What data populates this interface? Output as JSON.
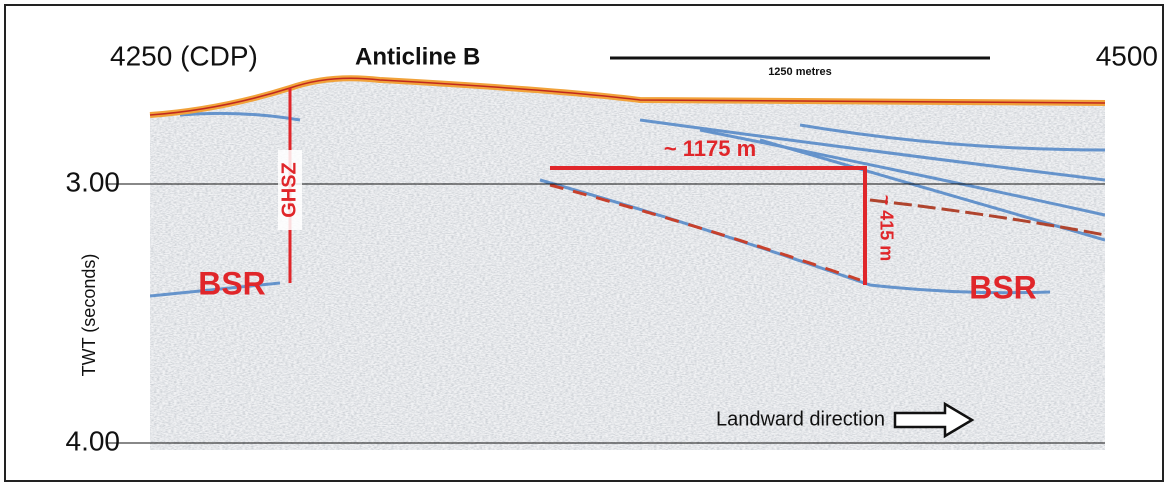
{
  "header": {
    "cdp_start": "4250 (CDP)",
    "title": "Anticline B",
    "scale_bar": "1250 metres",
    "cdp_end": "4500"
  },
  "axis": {
    "label": "TWT (seconds)",
    "ticks": [
      "3.00",
      "4.00"
    ]
  },
  "annotations": {
    "ghsz": "GHSZ",
    "bsr_left": "BSR",
    "bsr_right": "BSR",
    "width": "~ 1175 m",
    "height": "~ 415 m",
    "direction": "Landward direction"
  }
}
